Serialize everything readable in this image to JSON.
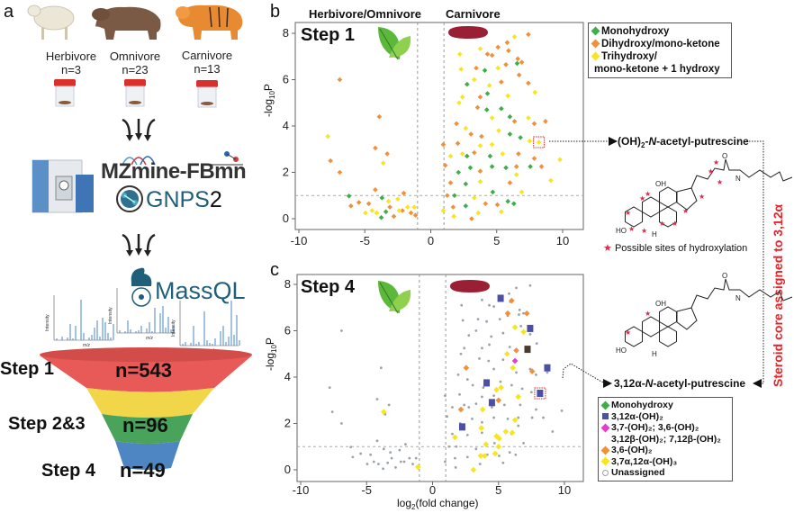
{
  "panel_a": {
    "label": "a",
    "animals": [
      {
        "name": "Herbivore",
        "n": "n=3"
      },
      {
        "name": "Omnivore",
        "n": "n=23"
      },
      {
        "name": "Carnivore",
        "n": "n=13"
      }
    ],
    "tools": {
      "mzmine": "MZmine-FBmn",
      "gnps_text": "GNPS",
      "gnps_num": "2",
      "massql": "MassQL",
      "spectrum_ylabel": "Intensity",
      "spectrum_xlabel": "m/z"
    },
    "funnel": [
      {
        "step": "Step 1",
        "count": "n=543",
        "color": "#e85a57"
      },
      {
        "step": "Step 2&3",
        "count": "n=96",
        "color": "#f1d64a"
      },
      {
        "step": "Step 4",
        "count": "n=49",
        "color": "#4aa35a"
      },
      {
        "step": "",
        "count": "",
        "color": "#4e86c4"
      }
    ]
  },
  "panel_b": {
    "label": "b",
    "header_left": "Herbivore/Omnivore",
    "header_right": "Carnivore",
    "step": "Step 1",
    "legend": [
      {
        "label": "Monohydroxy",
        "color": "#3fae49"
      },
      {
        "label": "Dihydroxy/mono-ketone",
        "color": "#f0913a"
      },
      {
        "label": "Trihydroxy/",
        "label2": "mono-ketone + 1 hydroxy",
        "color": "#f7e51e"
      }
    ],
    "compound": {
      "prefix": "(OH)",
      "sub": "2",
      "mid": "-",
      "italic": "N",
      "suffix": "-acetyl-putrescine"
    },
    "structure_labels": {
      "oh": "OH",
      "ho": "HO",
      "h": "H",
      "nh": "N",
      "o": "O"
    },
    "note": "Possible sites of hydroxylation",
    "note_color": "#e0264b"
  },
  "panel_c": {
    "label": "c",
    "step": "Step 4",
    "legend": [
      {
        "label": "Monohydroxy",
        "color": "#3fae49",
        "shape": "diamond"
      },
      {
        "label": "3,12α-(OH)₂",
        "color": "#4b4fa6",
        "shape": "square"
      },
      {
        "label": "3,7-(OH)₂; 3,6-(OH)₂",
        "label2": "3,12β-(OH)₂; 7,12β-(OH)₂",
        "color": "#e83ad0",
        "shape": "diamond"
      },
      {
        "label": "3,6-(OH)₂",
        "color": "#f0913a",
        "shape": "diamond"
      },
      {
        "label": "3,7α,12α-(OH)₃",
        "color": "#f7e51e",
        "shape": "diamond"
      },
      {
        "label": "Unassigned",
        "color": "#9aa3ad",
        "shape": "circle"
      }
    ],
    "compound": {
      "prefix": "3,12α-",
      "italic": "N",
      "suffix": "-acetyl-putrescine"
    }
  },
  "side_label": {
    "text": "Steroid core assigned to 3,12α",
    "color": "#e0262b"
  },
  "chart_data": [
    {
      "type": "scatter",
      "panel": "b",
      "title": "Step 1",
      "ylabel": {
        "base": "-log",
        "sub": "10",
        "end": "P"
      },
      "xlim": [
        -10.5,
        12
      ],
      "ylim": [
        -0.5,
        8.3
      ],
      "xticks": [
        "-10",
        "-5",
        "0",
        "5",
        "10"
      ],
      "yticks": [
        "0",
        "2",
        "4",
        "6",
        "8"
      ],
      "thresholds": {
        "x": [
          -1,
          1
        ],
        "y": 1
      },
      "classes": {
        "M": "#3fae49",
        "D": "#f0913a",
        "T": "#f7e51e"
      },
      "highlight": [
        8.2,
        3.3
      ],
      "points": [
        [
          -6.9,
          6.0,
          "D"
        ],
        [
          -7.8,
          3.55,
          "T"
        ],
        [
          -7.6,
          2.5,
          "D"
        ],
        [
          -6.9,
          2.0,
          "D"
        ],
        [
          -3.9,
          4.4,
          "D"
        ],
        [
          -4.2,
          3.05,
          "D"
        ],
        [
          -3.3,
          2.8,
          "D"
        ],
        [
          -3.6,
          2.4,
          "T"
        ],
        [
          -6.2,
          0.98,
          "M"
        ],
        [
          -4.2,
          1.25,
          "D"
        ],
        [
          -6.05,
          0.55,
          "D"
        ],
        [
          -5.45,
          0.7,
          "D"
        ],
        [
          -4.95,
          0.25,
          "T"
        ],
        [
          -4.7,
          0.65,
          "D"
        ],
        [
          -4.45,
          0.35,
          "T"
        ],
        [
          -3.75,
          0.05,
          "M"
        ],
        [
          -3.4,
          0.3,
          "M"
        ],
        [
          -3.7,
          0.9,
          "M"
        ],
        [
          -3.1,
          0.5,
          "D"
        ],
        [
          -2.8,
          0.1,
          "D"
        ],
        [
          -2.5,
          0.85,
          "T"
        ],
        [
          -2.05,
          1.1,
          "D"
        ],
        [
          -2.15,
          0.35,
          "D"
        ],
        [
          -1.75,
          0.5,
          "T"
        ],
        [
          -1.5,
          0.25,
          "D"
        ],
        [
          -1.25,
          0.5,
          "T"
        ],
        [
          -1.15,
          0.15,
          "D"
        ],
        [
          -4.1,
          0.25,
          "T"
        ],
        [
          -3.2,
          0.75,
          "T"
        ],
        [
          -2.4,
          0.35,
          "T"
        ],
        [
          7.4,
          7.95,
          "D"
        ],
        [
          6.35,
          7.85,
          "T"
        ],
        [
          5.8,
          7.6,
          "D"
        ],
        [
          5.1,
          7.4,
          "D"
        ],
        [
          3.75,
          7.33,
          "T"
        ],
        [
          2.2,
          7.1,
          "T"
        ],
        [
          4.3,
          7.1,
          "D"
        ],
        [
          4.65,
          7.05,
          "D"
        ],
        [
          5.9,
          7.25,
          "D"
        ],
        [
          6.6,
          6.9,
          "D"
        ],
        [
          6.9,
          6.75,
          "D"
        ],
        [
          6.55,
          6.7,
          "M"
        ],
        [
          2.3,
          6.45,
          "T"
        ],
        [
          3.45,
          6.5,
          "D"
        ],
        [
          4.1,
          6.4,
          "M"
        ],
        [
          5.1,
          6.5,
          "T"
        ],
        [
          5.7,
          6.65,
          "D"
        ],
        [
          6.7,
          6.2,
          "D"
        ],
        [
          3.3,
          6.0,
          "T"
        ],
        [
          2.75,
          5.8,
          "M"
        ],
        [
          4.45,
          5.75,
          "T"
        ],
        [
          5.35,
          5.9,
          "D"
        ],
        [
          7.4,
          5.85,
          "D"
        ],
        [
          7.9,
          5.45,
          "T"
        ],
        [
          2.4,
          5.25,
          "T"
        ],
        [
          3.75,
          5.25,
          "D"
        ],
        [
          4.3,
          5.4,
          "M"
        ],
        [
          5.85,
          5.3,
          "T"
        ],
        [
          2.15,
          5.0,
          "T"
        ],
        [
          3.55,
          4.8,
          "D"
        ],
        [
          4.25,
          4.7,
          "M"
        ],
        [
          5.35,
          4.75,
          "M"
        ],
        [
          4.65,
          4.35,
          "T"
        ],
        [
          6.0,
          4.4,
          "M"
        ],
        [
          6.35,
          4.2,
          "D"
        ],
        [
          7.4,
          4.35,
          "T"
        ],
        [
          8.7,
          4.2,
          "D"
        ],
        [
          7.85,
          4.1,
          "D"
        ],
        [
          1.95,
          4.1,
          "D"
        ],
        [
          2.65,
          3.9,
          "T"
        ],
        [
          3.05,
          3.65,
          "D"
        ],
        [
          3.85,
          3.55,
          "D"
        ],
        [
          5.15,
          3.8,
          "T"
        ],
        [
          6.0,
          3.65,
          "M"
        ],
        [
          6.8,
          3.5,
          "M"
        ],
        [
          7.5,
          3.35,
          "T"
        ],
        [
          0.95,
          3.2,
          "D"
        ],
        [
          2.05,
          3.25,
          "D"
        ],
        [
          3.75,
          3.15,
          "T"
        ],
        [
          4.65,
          3.2,
          "T"
        ],
        [
          8.2,
          3.3,
          "T"
        ],
        [
          1.5,
          2.7,
          "T"
        ],
        [
          2.4,
          2.8,
          "T"
        ],
        [
          2.75,
          2.7,
          "M"
        ],
        [
          3.3,
          2.85,
          "D"
        ],
        [
          4.5,
          2.7,
          "M"
        ],
        [
          5.45,
          2.8,
          "T"
        ],
        [
          6.65,
          2.8,
          "D"
        ],
        [
          7.85,
          2.6,
          "D"
        ],
        [
          9.8,
          2.55,
          "T"
        ],
        [
          1.1,
          2.3,
          "D"
        ],
        [
          2.1,
          2.0,
          "M"
        ],
        [
          3.0,
          2.2,
          "M"
        ],
        [
          3.75,
          2.05,
          "D"
        ],
        [
          4.65,
          2.25,
          "M"
        ],
        [
          5.7,
          2.2,
          "M"
        ],
        [
          6.5,
          2.25,
          "D"
        ],
        [
          7.55,
          2.25,
          "M"
        ],
        [
          8.4,
          2.25,
          "D"
        ],
        [
          6.5,
          1.9,
          "T"
        ],
        [
          9.1,
          1.65,
          "T"
        ],
        [
          1.5,
          1.55,
          "D"
        ],
        [
          2.65,
          1.5,
          "M"
        ],
        [
          3.75,
          1.6,
          "T"
        ],
        [
          4.7,
          1.15,
          "M"
        ],
        [
          6.0,
          1.55,
          "D"
        ],
        [
          6.9,
          1.15,
          "T"
        ],
        [
          1.25,
          1.0,
          "D"
        ],
        [
          1.8,
          1.0,
          "M"
        ],
        [
          3.3,
          0.9,
          "T"
        ],
        [
          4.15,
          0.65,
          "D"
        ],
        [
          5.05,
          0.6,
          "D"
        ],
        [
          5.85,
          0.75,
          "M"
        ],
        [
          6.3,
          0.65,
          "M"
        ],
        [
          0.95,
          0.35,
          "T"
        ],
        [
          1.7,
          0.5,
          "D"
        ],
        [
          2.65,
          0.55,
          "M"
        ],
        [
          3.1,
          0.0,
          "D"
        ],
        [
          3.6,
          0.25,
          "T"
        ],
        [
          5.35,
          0.3,
          "T"
        ],
        [
          1.75,
          0.1,
          "T"
        ]
      ]
    },
    {
      "type": "scatter",
      "panel": "c",
      "title": "Step 4",
      "xlabel": {
        "base": "log",
        "sub": "2",
        "end": "(fold change)"
      },
      "ylabel": {
        "base": "-log",
        "sub": "10",
        "end": "P"
      },
      "xlim": [
        -10.5,
        12
      ],
      "ylim": [
        -0.5,
        8.3
      ],
      "xticks": [
        "-10",
        "-5",
        "0",
        "5",
        "10"
      ],
      "yticks": [
        "0",
        "2",
        "4",
        "6",
        "8"
      ],
      "thresholds": {
        "x": [
          -1,
          1
        ],
        "y": 1
      },
      "classes": {
        "A": "#4b4fa6",
        "B": "#e83ad0",
        "C": "#f0913a",
        "D": "#f7e51e",
        "E": "#4a3a30",
        "U": "#9aa3ad"
      },
      "highlight": [
        8.15,
        3.3
      ],
      "points": [
        [
          5.16,
          7.4,
          "A"
        ],
        [
          7.4,
          6.1,
          "A"
        ],
        [
          8.7,
          4.4,
          "A"
        ],
        [
          4.1,
          3.75,
          "A"
        ],
        [
          4.5,
          2.9,
          "A"
        ],
        [
          2.25,
          1.85,
          "A"
        ],
        [
          8.15,
          3.3,
          "A"
        ],
        [
          7.2,
          5.2,
          "E"
        ],
        [
          6.25,
          4.7,
          "B"
        ],
        [
          6.0,
          7.3,
          "C"
        ],
        [
          5.7,
          6.75,
          "C"
        ],
        [
          7.15,
          6.75,
          "C"
        ],
        [
          6.35,
          5.15,
          "C"
        ],
        [
          7.55,
          4.25,
          "C"
        ],
        [
          2.55,
          4.4,
          "C"
        ],
        [
          2.15,
          2.6,
          "C"
        ],
        [
          5.0,
          3.0,
          "C"
        ],
        [
          6.25,
          6.15,
          "D"
        ],
        [
          6.9,
          5.95,
          "D"
        ],
        [
          5.65,
          5.0,
          "D"
        ],
        [
          6.1,
          4.4,
          "D"
        ],
        [
          5.2,
          3.55,
          "D"
        ],
        [
          4.85,
          3.45,
          "D"
        ],
        [
          6.5,
          3.15,
          "D"
        ],
        [
          3.8,
          2.6,
          "D"
        ],
        [
          6.25,
          2.15,
          "D"
        ],
        [
          3.7,
          1.8,
          "D"
        ],
        [
          5.55,
          1.65,
          "D"
        ],
        [
          6.05,
          1.6,
          "D"
        ],
        [
          4.85,
          1.45,
          "D"
        ],
        [
          5.05,
          1.35,
          "D"
        ],
        [
          5.0,
          1.0,
          "D"
        ],
        [
          4.05,
          1.1,
          "D"
        ],
        [
          1.7,
          1.4,
          "D"
        ],
        [
          4.75,
          0.7,
          "D"
        ],
        [
          3.65,
          0.6,
          "D"
        ],
        [
          3.95,
          0.6,
          "D"
        ],
        [
          3.1,
          0.0,
          "D"
        ],
        [
          -3.7,
          2.5,
          "D"
        ],
        [
          -1.1,
          0.12,
          "D"
        ]
      ]
    }
  ]
}
